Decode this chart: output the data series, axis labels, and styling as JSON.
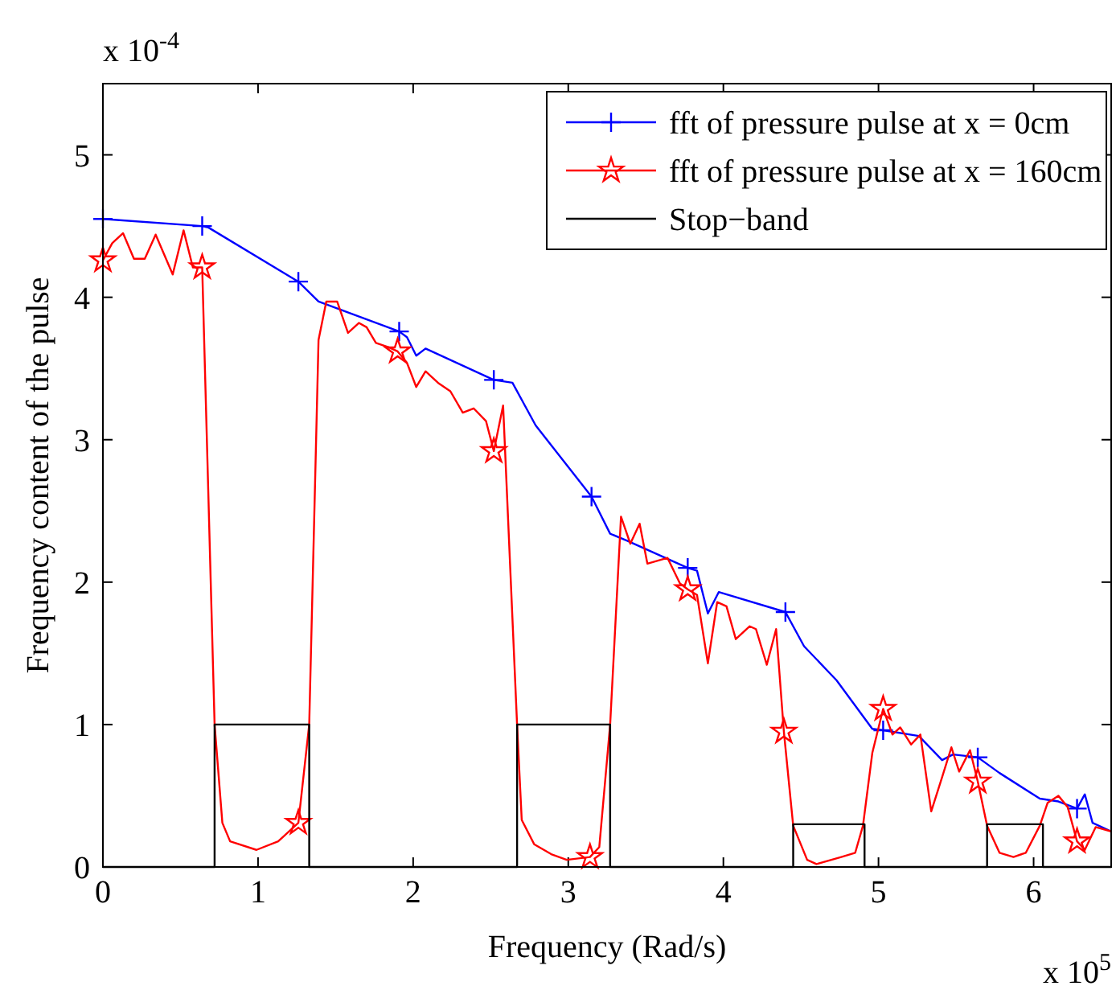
{
  "chart_data": {
    "type": "line",
    "xlabel": "Frequency (Rad/s)",
    "ylabel": "Frequency content of the pulse",
    "annotations": [
      "x 10$^{-4}$",
      "x 10$^{5}$"
    ],
    "xlim": [
      0,
      6.5
    ],
    "ylim": [
      0,
      5.5
    ],
    "xticks": [
      0,
      1,
      2,
      3,
      4,
      5,
      6
    ],
    "yticks": [
      0,
      1,
      2,
      3,
      4,
      5
    ],
    "grid": false,
    "legend": "top right",
    "line_style": "solid",
    "series": [
      {
        "name": "fft of pressure pulse at x = 0cm",
        "color": "#0000ff",
        "x": [
          0,
          0.64,
          0.68,
          1.26,
          1.39,
          1.91,
          1.96,
          2.02,
          2.08,
          2.52,
          2.64,
          2.73,
          2.79,
          3.15,
          3.27,
          3.38,
          3.77,
          3.83,
          3.9,
          3.97,
          4.4,
          4.52,
          4.73,
          4.96,
          5.03,
          5.26,
          5.41,
          5.48,
          5.64,
          5.78,
          6.04,
          6.16,
          6.28,
          6.33,
          6.38,
          6.5
        ],
        "values": [
          4.55,
          4.5,
          4.49,
          4.11,
          3.97,
          3.76,
          3.72,
          3.59,
          3.64,
          3.42,
          3.4,
          3.22,
          3.1,
          2.6,
          2.34,
          2.29,
          2.1,
          2.08,
          1.78,
          1.93,
          1.79,
          1.55,
          1.31,
          0.97,
          0.96,
          0.92,
          0.75,
          0.79,
          0.77,
          0.66,
          0.48,
          0.46,
          0.41,
          0.51,
          0.31,
          0.25
        ]
      },
      {
        "type": "scatter",
        "color": "#0000ff",
        "marker": "cross",
        "x": [
          0,
          0.64,
          1.26,
          1.91,
          2.52,
          3.15,
          3.77,
          4.4,
          5.03,
          5.64,
          6.28
        ],
        "values": [
          4.55,
          4.5,
          4.11,
          3.76,
          3.42,
          2.6,
          2.1,
          1.79,
          0.96,
          0.77,
          0.41
        ]
      },
      {
        "name": "fft of pressure pulse at x = 160cm",
        "color": "#ff0000",
        "x": [
          0,
          0.06,
          0.13,
          0.2,
          0.27,
          0.34,
          0.45,
          0.52,
          0.58,
          0.64,
          0.72,
          0.77,
          0.82,
          0.99,
          1.13,
          1.26,
          1.33,
          1.39,
          1.44,
          1.51,
          1.58,
          1.65,
          1.7,
          1.76,
          1.84,
          1.9,
          1.96,
          2.02,
          2.08,
          2.16,
          2.24,
          2.32,
          2.39,
          2.47,
          2.52,
          2.58,
          2.67,
          2.7,
          2.78,
          2.89,
          2.99,
          3.14,
          3.2,
          3.27,
          3.34,
          3.4,
          3.46,
          3.51,
          3.64,
          3.72,
          3.77,
          3.83,
          3.9,
          3.96,
          4.02,
          4.08,
          4.17,
          4.21,
          4.28,
          4.34,
          4.39,
          4.45,
          4.54,
          4.6,
          4.76,
          4.85,
          4.9,
          4.96,
          5.03,
          5.09,
          5.14,
          5.21,
          5.27,
          5.34,
          5.41,
          5.47,
          5.52,
          5.59,
          5.64,
          5.7,
          5.78,
          5.87,
          5.95,
          6.04,
          6.09,
          6.16,
          6.22,
          6.28,
          6.33,
          6.4,
          6.5
        ],
        "values": [
          4.26,
          4.38,
          4.45,
          4.27,
          4.27,
          4.44,
          4.16,
          4.47,
          4.21,
          4.21,
          1.0,
          0.31,
          0.18,
          0.12,
          0.18,
          0.31,
          1.0,
          3.7,
          3.97,
          3.97,
          3.75,
          3.82,
          3.79,
          3.68,
          3.65,
          3.62,
          3.54,
          3.37,
          3.48,
          3.4,
          3.34,
          3.19,
          3.22,
          3.13,
          2.92,
          3.24,
          1.0,
          0.33,
          0.16,
          0.09,
          0.05,
          0.07,
          0.14,
          1.0,
          2.46,
          2.27,
          2.41,
          2.13,
          2.17,
          1.99,
          1.95,
          1.91,
          1.43,
          1.86,
          1.83,
          1.6,
          1.69,
          1.67,
          1.42,
          1.67,
          0.95,
          0.29,
          0.05,
          0.02,
          0.07,
          0.1,
          0.29,
          0.8,
          1.11,
          0.93,
          0.98,
          0.86,
          0.93,
          0.39,
          0.63,
          0.84,
          0.67,
          0.82,
          0.6,
          0.29,
          0.1,
          0.07,
          0.1,
          0.29,
          0.45,
          0.5,
          0.42,
          0.18,
          0.12,
          0.28,
          0.25
        ]
      },
      {
        "type": "scatter",
        "color": "#ff0000",
        "marker": "star",
        "x": [
          0,
          0.64,
          1.26,
          1.9,
          2.52,
          3.14,
          3.77,
          4.39,
          5.03,
          5.64,
          6.28
        ],
        "values": [
          4.26,
          4.21,
          0.31,
          3.62,
          2.92,
          0.07,
          1.95,
          0.95,
          1.11,
          0.6,
          0.18
        ]
      },
      {
        "name": "Stop−band",
        "color": "#000000",
        "x": [
          0,
          0.72,
          0.72,
          1.33,
          1.33,
          2.67,
          2.67,
          3.27,
          3.27,
          4.45,
          4.45,
          4.91,
          4.91,
          5.7,
          5.7,
          6.06,
          6.06,
          6.5
        ],
        "values": [
          0,
          0,
          1,
          1,
          0,
          0,
          1,
          1,
          0,
          0,
          0.3,
          0.3,
          0,
          0,
          0.3,
          0.3,
          0,
          0
        ]
      }
    ]
  }
}
